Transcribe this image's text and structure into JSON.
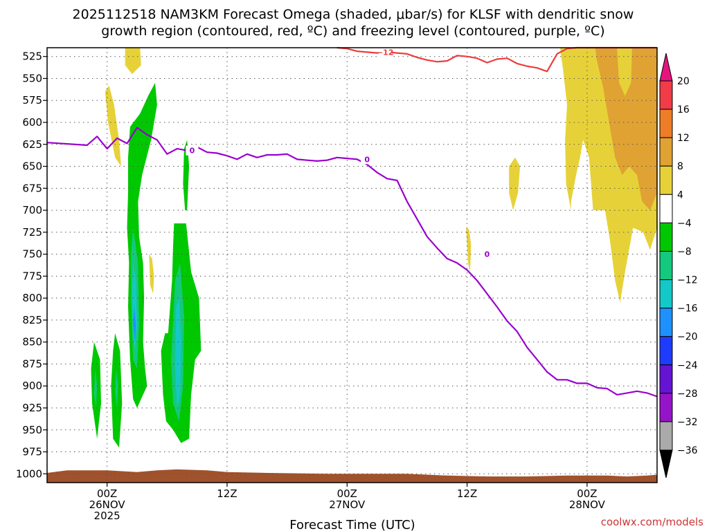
{
  "chart_data": {
    "type": "time-height cross section",
    "title_line1": "2025112518 NAM3KM Forecast Omega (shaded, μbar/s) for KLSF with dendritic snow",
    "title_line2": "growth region (contoured, red, ºC) and freezing level (contoured, purple, ºC)",
    "xlabel": "Forecast Time (UTC)",
    "credit": "coolwx.com/models",
    "y_axis": {
      "unit": "hPa",
      "range": [
        515,
        1010
      ],
      "ticks": [
        525,
        550,
        575,
        600,
        625,
        650,
        675,
        700,
        725,
        750,
        775,
        800,
        825,
        850,
        875,
        900,
        925,
        950,
        975,
        1000
      ]
    },
    "x_axis": {
      "unit": "forecast hour",
      "range": [
        0,
        61
      ],
      "ticks": [
        {
          "hour": 6,
          "lines": [
            "00Z",
            "26NOV",
            "2025"
          ]
        },
        {
          "hour": 18,
          "lines": [
            "12Z"
          ]
        },
        {
          "hour": 30,
          "lines": [
            "00Z",
            "27NOV"
          ]
        },
        {
          "hour": 42,
          "lines": [
            "12Z"
          ]
        },
        {
          "hour": 54,
          "lines": [
            "00Z",
            "28NOV"
          ]
        }
      ]
    },
    "colorbar": {
      "labels": [
        "20",
        "16",
        "12",
        "8",
        "4",
        "−4",
        "−8",
        "−12",
        "−16",
        "−20",
        "−24",
        "−28",
        "−32",
        "−36"
      ],
      "bands": [
        {
          "from": 20,
          "to": 16,
          "color": "#f03c46"
        },
        {
          "from": 16,
          "to": 12,
          "color": "#ee7d28"
        },
        {
          "from": 12,
          "to": 8,
          "color": "#e0a232"
        },
        {
          "from": 8,
          "to": 4,
          "color": "#e6d238"
        },
        {
          "from": 4,
          "to": -4,
          "color": "#ffffff"
        },
        {
          "from": -4,
          "to": -8,
          "color": "#00c800"
        },
        {
          "from": -8,
          "to": -12,
          "color": "#14c87d"
        },
        {
          "from": -12,
          "to": -16,
          "color": "#14c8c8"
        },
        {
          "from": -16,
          "to": -20,
          "color": "#1e91ff"
        },
        {
          "from": -20,
          "to": -24,
          "color": "#1e3cff"
        },
        {
          "from": -24,
          "to": -28,
          "color": "#6414d2"
        },
        {
          "from": -28,
          "to": -32,
          "color": "#9614c8"
        },
        {
          "from": -32,
          "to": -36,
          "color": "#aaaaaa"
        }
      ],
      "top_color": "#e6147d",
      "bottom_color": "#000000"
    },
    "freezing_level": {
      "label": "0",
      "color": "#9900cc",
      "points": [
        [
          0,
          623
        ],
        [
          4,
          626
        ],
        [
          5,
          616
        ],
        [
          6,
          630
        ],
        [
          7,
          618
        ],
        [
          8,
          624
        ],
        [
          9,
          606
        ],
        [
          10,
          614
        ],
        [
          11,
          620
        ],
        [
          12,
          636
        ],
        [
          13,
          630
        ],
        [
          14,
          632
        ],
        [
          15,
          628
        ],
        [
          16,
          634
        ],
        [
          17,
          635
        ],
        [
          18,
          638
        ],
        [
          19,
          642
        ],
        [
          20,
          636
        ],
        [
          21,
          640
        ],
        [
          22,
          637
        ],
        [
          23,
          637
        ],
        [
          24,
          636
        ],
        [
          25,
          642
        ],
        [
          26,
          643
        ],
        [
          27,
          644
        ],
        [
          28,
          643
        ],
        [
          29,
          640
        ],
        [
          30,
          641
        ],
        [
          31,
          642
        ],
        [
          32,
          648
        ],
        [
          33,
          657
        ],
        [
          34,
          664
        ],
        [
          35,
          666
        ],
        [
          36,
          690
        ],
        [
          37,
          710
        ],
        [
          38,
          730
        ],
        [
          39,
          743
        ],
        [
          40,
          755
        ],
        [
          41,
          760
        ],
        [
          42,
          768
        ],
        [
          43,
          780
        ],
        [
          44,
          795
        ],
        [
          45,
          810
        ],
        [
          46,
          826
        ],
        [
          47,
          838
        ],
        [
          48,
          856
        ],
        [
          49,
          870
        ],
        [
          50,
          884
        ],
        [
          51,
          893
        ],
        [
          52,
          893
        ],
        [
          53,
          897
        ],
        [
          54,
          897
        ],
        [
          55,
          902
        ],
        [
          56,
          903
        ],
        [
          57,
          910
        ],
        [
          58,
          908
        ],
        [
          59,
          906
        ],
        [
          60,
          908
        ],
        [
          61,
          912
        ]
      ],
      "labels_at": [
        [
          14.5,
          632
        ],
        [
          32,
          642
        ],
        [
          44,
          750
        ]
      ]
    },
    "dendritic_zone": {
      "label": "−12",
      "color": "#ee3c3c",
      "points": [
        [
          29,
          514
        ],
        [
          30,
          516
        ],
        [
          31,
          519
        ],
        [
          32,
          520
        ],
        [
          33,
          521
        ],
        [
          34,
          520
        ],
        [
          35,
          521
        ],
        [
          36,
          522
        ],
        [
          37,
          526
        ],
        [
          38,
          529
        ],
        [
          39,
          531
        ],
        [
          40,
          530
        ],
        [
          41,
          524
        ],
        [
          42,
          525
        ],
        [
          43,
          527
        ],
        [
          44,
          532
        ],
        [
          45,
          528
        ],
        [
          46,
          527
        ],
        [
          47,
          533
        ],
        [
          48,
          536
        ],
        [
          49,
          538
        ],
        [
          50,
          542
        ],
        [
          51,
          522
        ],
        [
          52,
          516
        ],
        [
          53,
          514
        ],
        [
          54,
          514
        ],
        [
          55,
          514
        ],
        [
          56,
          514
        ],
        [
          57,
          514
        ],
        [
          58,
          514
        ],
        [
          59,
          514
        ],
        [
          60,
          514
        ],
        [
          61,
          514
        ]
      ],
      "labels_at": [
        [
          33.8,
          520
        ]
      ]
    },
    "omega_regions": [
      {
        "value": 6,
        "points": [
          [
            7.8,
            510
          ],
          [
            9.3,
            510
          ],
          [
            9.4,
            535
          ],
          [
            8.5,
            545
          ],
          [
            7.8,
            535
          ]
        ]
      },
      {
        "value": 6,
        "points": [
          [
            5.8,
            565
          ],
          [
            6.1,
            600
          ],
          [
            6.8,
            640
          ],
          [
            7.4,
            650
          ],
          [
            7.2,
            620
          ],
          [
            6.7,
            580
          ],
          [
            6.2,
            558
          ]
        ]
      },
      {
        "value": 6,
        "points": [
          [
            10.2,
            750
          ],
          [
            10.3,
            785
          ],
          [
            10.6,
            795
          ],
          [
            10.7,
            775
          ],
          [
            10.5,
            755
          ]
        ]
      },
      {
        "value": 6,
        "points": [
          [
            41.9,
            720
          ],
          [
            42.1,
            760
          ],
          [
            42.3,
            770
          ],
          [
            42.4,
            740
          ],
          [
            42.2,
            722
          ]
        ]
      },
      {
        "value": 6,
        "points": [
          [
            46.2,
            650
          ],
          [
            46.8,
            640
          ],
          [
            47.3,
            650
          ],
          [
            47.1,
            680
          ],
          [
            46.6,
            700
          ],
          [
            46.2,
            680
          ]
        ]
      },
      {
        "value": 6,
        "points": [
          [
            51.3,
            510
          ],
          [
            61,
            510
          ],
          [
            61,
            720
          ],
          [
            60.3,
            745
          ],
          [
            59.6,
            725
          ],
          [
            58.6,
            720
          ],
          [
            57.8,
            770
          ],
          [
            57.3,
            805
          ],
          [
            56.8,
            780
          ],
          [
            56.3,
            735
          ],
          [
            55.8,
            700
          ],
          [
            54.6,
            700
          ],
          [
            54.2,
            640
          ],
          [
            53.6,
            620
          ],
          [
            53.3,
            640
          ],
          [
            52.9,
            660
          ],
          [
            52.4,
            690
          ],
          [
            52.4,
            700
          ],
          [
            51.9,
            670
          ],
          [
            51.8,
            620
          ],
          [
            52.0,
            580
          ],
          [
            51.6,
            540
          ]
        ]
      },
      {
        "value": 10,
        "points": [
          [
            54.8,
            510
          ],
          [
            57.0,
            510
          ],
          [
            57.2,
            555
          ],
          [
            57.8,
            570
          ],
          [
            58.4,
            555
          ],
          [
            58.5,
            510
          ],
          [
            61,
            510
          ],
          [
            61,
            680
          ],
          [
            60.3,
            700
          ],
          [
            59.5,
            690
          ],
          [
            59.0,
            660
          ],
          [
            58.2,
            650
          ],
          [
            57.5,
            660
          ],
          [
            56.8,
            640
          ],
          [
            56.2,
            600
          ],
          [
            55.6,
            560
          ],
          [
            55.0,
            530
          ]
        ]
      },
      {
        "value": -6,
        "points": [
          [
            8.3,
            605
          ],
          [
            9.3,
            590
          ],
          [
            10.1,
            570
          ],
          [
            10.8,
            555
          ],
          [
            11.0,
            580
          ],
          [
            10.4,
            620
          ],
          [
            9.5,
            660
          ],
          [
            9.1,
            690
          ],
          [
            9.2,
            730
          ],
          [
            9.6,
            760
          ],
          [
            9.7,
            800
          ],
          [
            9.6,
            850
          ],
          [
            9.8,
            880
          ],
          [
            10.0,
            900
          ],
          [
            9.6,
            910
          ],
          [
            9.0,
            925
          ],
          [
            8.6,
            915
          ],
          [
            8.3,
            870
          ],
          [
            8.1,
            810
          ],
          [
            8.2,
            760
          ],
          [
            8.0,
            720
          ],
          [
            8.1,
            680
          ],
          [
            8.1,
            640
          ]
        ]
      },
      {
        "value": -6,
        "points": [
          [
            13.7,
            630
          ],
          [
            14.0,
            620
          ],
          [
            14.2,
            650
          ],
          [
            14.0,
            700
          ],
          [
            13.8,
            700
          ],
          [
            13.6,
            670
          ]
        ]
      },
      {
        "value": -6,
        "points": [
          [
            12.7,
            715
          ],
          [
            13.9,
            715
          ],
          [
            14.4,
            770
          ],
          [
            15.2,
            800
          ],
          [
            15.4,
            860
          ],
          [
            14.8,
            870
          ],
          [
            14.4,
            910
          ],
          [
            14.2,
            960
          ],
          [
            13.4,
            965
          ],
          [
            12.6,
            950
          ],
          [
            11.9,
            940
          ],
          [
            11.6,
            910
          ],
          [
            11.4,
            860
          ],
          [
            11.8,
            840
          ],
          [
            12.1,
            840
          ],
          [
            12.5,
            780
          ],
          [
            12.6,
            740
          ]
        ]
      },
      {
        "value": -6,
        "points": [
          [
            4.7,
            850
          ],
          [
            5.3,
            870
          ],
          [
            5.4,
            920
          ],
          [
            5.0,
            960
          ],
          [
            4.5,
            920
          ],
          [
            4.4,
            880
          ]
        ]
      },
      {
        "value": -6,
        "points": [
          [
            6.8,
            840
          ],
          [
            7.3,
            860
          ],
          [
            7.5,
            920
          ],
          [
            7.2,
            970
          ],
          [
            6.6,
            960
          ],
          [
            6.4,
            900
          ],
          [
            6.6,
            860
          ]
        ]
      },
      {
        "value": -10,
        "points": [
          [
            8.6,
            720
          ],
          [
            9.1,
            760
          ],
          [
            9.2,
            830
          ],
          [
            9.0,
            880
          ],
          [
            8.6,
            870
          ],
          [
            8.4,
            800
          ],
          [
            8.4,
            750
          ]
        ]
      },
      {
        "value": -10,
        "points": [
          [
            12.8,
            780
          ],
          [
            13.3,
            760
          ],
          [
            13.7,
            820
          ],
          [
            13.6,
            900
          ],
          [
            13.2,
            940
          ],
          [
            12.6,
            920
          ],
          [
            12.4,
            870
          ]
        ]
      },
      {
        "value": -10,
        "points": [
          [
            4.8,
            880
          ],
          [
            5.0,
            900
          ],
          [
            4.9,
            925
          ],
          [
            4.7,
            910
          ]
        ]
      },
      {
        "value": -10,
        "points": [
          [
            6.9,
            880
          ],
          [
            7.1,
            900
          ],
          [
            7.0,
            925
          ],
          [
            6.8,
            905
          ]
        ]
      },
      {
        "value": -14,
        "points": [
          [
            8.6,
            760
          ],
          [
            8.9,
            780
          ],
          [
            9.0,
            830
          ],
          [
            8.8,
            860
          ],
          [
            8.6,
            840
          ],
          [
            8.5,
            800
          ]
        ]
      },
      {
        "value": -14,
        "points": [
          [
            12.9,
            810
          ],
          [
            13.2,
            800
          ],
          [
            13.4,
            850
          ],
          [
            13.3,
            910
          ],
          [
            13.0,
            925
          ],
          [
            12.8,
            880
          ]
        ]
      },
      {
        "value": -18,
        "points": [
          [
            8.7,
            810
          ],
          [
            8.9,
            830
          ],
          [
            8.8,
            850
          ],
          [
            8.6,
            830
          ]
        ]
      }
    ],
    "terrain": {
      "color": "#a0522d",
      "surface": [
        [
          0,
          999
        ],
        [
          2,
          996
        ],
        [
          6,
          996
        ],
        [
          9,
          998
        ],
        [
          11,
          996
        ],
        [
          13,
          995
        ],
        [
          16,
          996
        ],
        [
          18,
          998
        ],
        [
          22,
          999
        ],
        [
          28,
          1000
        ],
        [
          36,
          1000
        ],
        [
          40,
          1002
        ],
        [
          44,
          1003
        ],
        [
          48,
          1003
        ],
        [
          52,
          1002
        ],
        [
          56,
          1002
        ],
        [
          58,
          1003
        ],
        [
          60,
          1002
        ],
        [
          61,
          1001
        ]
      ]
    }
  }
}
